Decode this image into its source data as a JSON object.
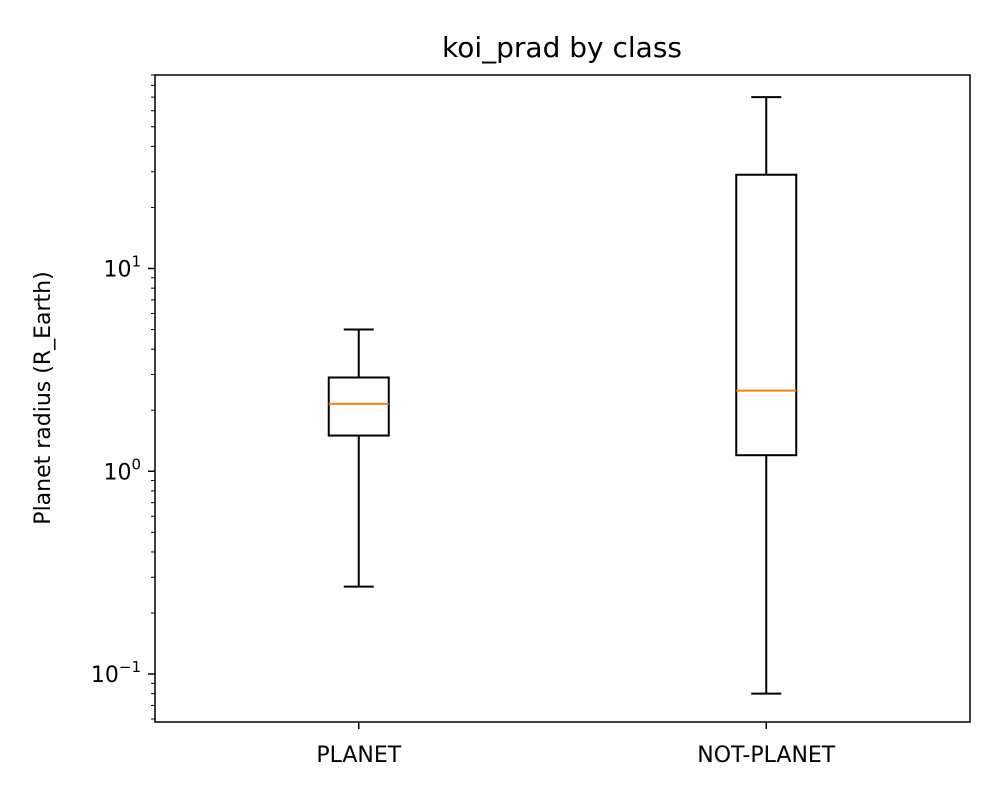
{
  "chart_data": {
    "type": "box",
    "title": "koi_prad by class",
    "xlabel": "",
    "ylabel": "Planet radius (R_Earth)",
    "yscale": "log",
    "ylim": [
      0.058,
      90
    ],
    "grid": false,
    "categories": [
      "PLANET",
      "NOT-PLANET"
    ],
    "boxes": [
      {
        "category": "PLANET",
        "whisker_low": 0.27,
        "q1": 1.5,
        "median": 2.15,
        "q3": 2.9,
        "whisker_high": 5.0
      },
      {
        "category": "NOT-PLANET",
        "whisker_low": 0.08,
        "q1": 1.2,
        "median": 2.5,
        "q3": 29.0,
        "whisker_high": 70.0
      }
    ],
    "yticks": [
      {
        "base": "10",
        "exp": "−1",
        "value": 0.1
      },
      {
        "base": "10",
        "exp": "0",
        "value": 1
      },
      {
        "base": "10",
        "exp": "1",
        "value": 10
      }
    ],
    "colors": {
      "box": "#000000",
      "median": "#ff7f0e",
      "axes": "#000000"
    }
  }
}
